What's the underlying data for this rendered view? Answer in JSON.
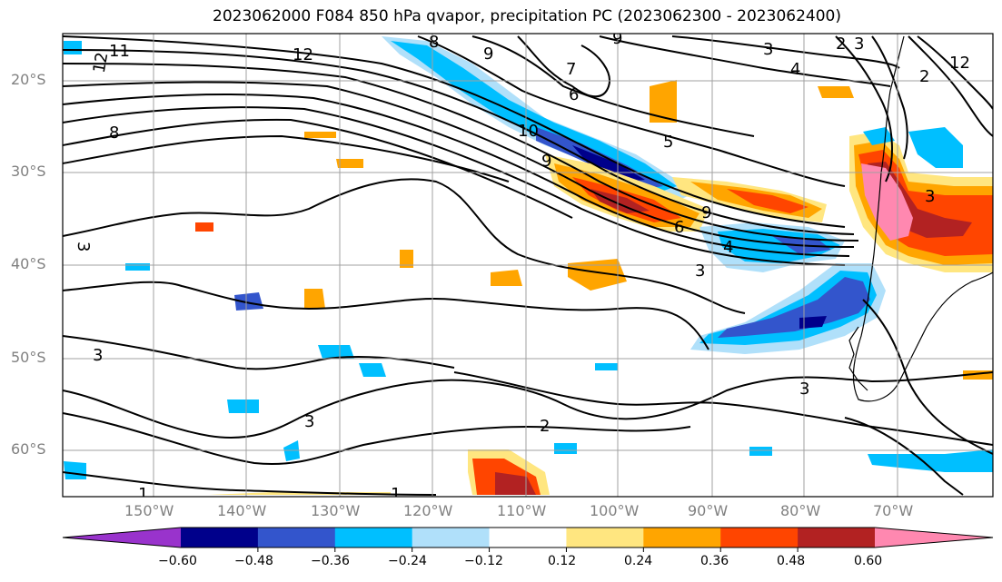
{
  "title": "2023062000 F084 850 hPa qvapor, precipitation PC (2023062300 - 2023062400)",
  "lat_labels": [
    "20°S",
    "30°S",
    "40°S",
    "50°S",
    "60°S"
  ],
  "lon_labels": [
    "150°W",
    "140°W",
    "130°W",
    "120°W",
    "110°W",
    "100°W",
    "90°W",
    "80°W",
    "70°W"
  ],
  "colorbar": {
    "tick_labels": [
      "−0.60",
      "−0.48",
      "−0.36",
      "−0.24",
      "−0.12",
      "0.12",
      "0.24",
      "0.36",
      "0.48",
      "0.60"
    ],
    "colors": [
      "#9933cc",
      "#00008b",
      "#3355cc",
      "#00bfff",
      "#b0e0fa",
      "#ffffff",
      "#ffe680",
      "#ffa500",
      "#ff4500",
      "#b22222",
      "#ff88b0"
    ]
  },
  "contour_labels": [
    "11",
    "12",
    "12",
    "8",
    "8",
    "9",
    "10",
    "9",
    "9",
    "7",
    "6",
    "5",
    "9",
    "6",
    "4",
    "4",
    "3",
    "2",
    "3",
    "2",
    "12",
    "3",
    "3",
    "3",
    "3",
    "3",
    "3",
    "2",
    "1",
    "1"
  ],
  "fill_colors": {
    "dark_blue": "#00008b",
    "blue": "#3355cc",
    "cyan": "#00bfff",
    "light_blue": "#b0e0fa",
    "yellow": "#ffe680",
    "orange": "#ffa500",
    "red_orange": "#ff4500",
    "dark_red": "#b22222",
    "pink": "#ff88b0"
  }
}
